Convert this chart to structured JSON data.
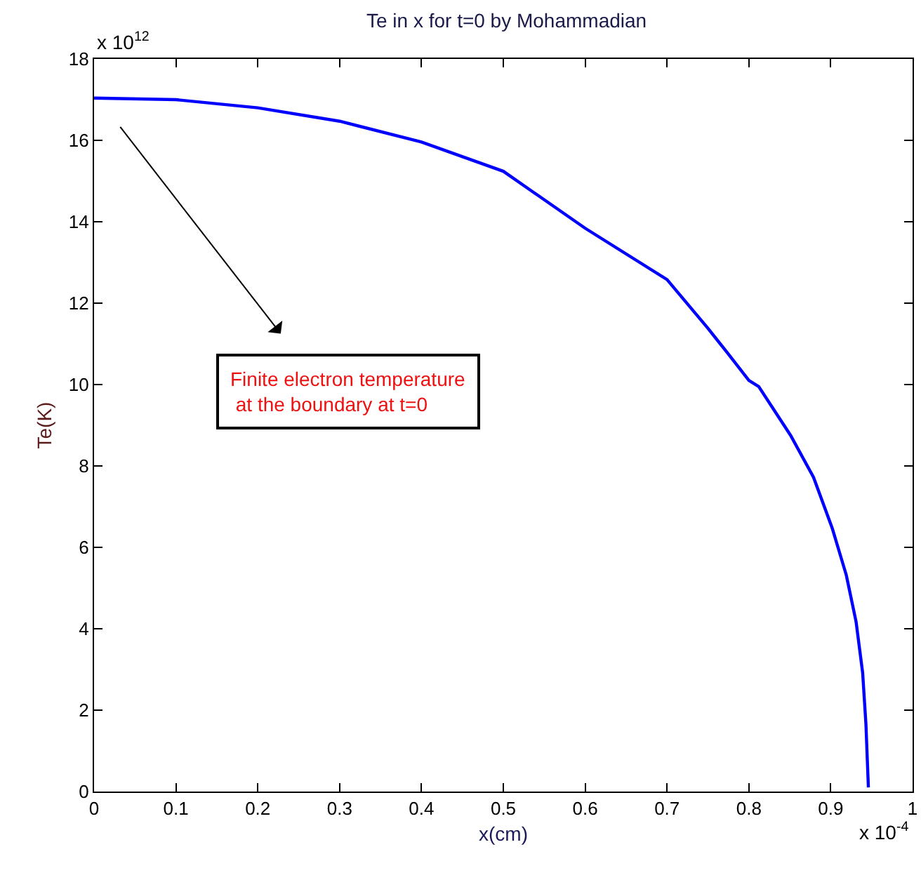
{
  "chart_data": {
    "type": "line",
    "title": "Te in x for t=0 by Mohammadian",
    "xlabel": "x(cm)",
    "ylabel": "Te(K)",
    "annotations": [
      "Finite electron temperature\n at the boundary at t=0",
      "x 10$^{12}$",
      "x 10$^{-4}$"
    ],
    "series": [
      {
        "color": "#0000ff",
        "x": [
          0,
          0.1,
          0.2,
          0.3,
          0.4,
          0.5,
          0.6,
          0.7,
          0.75,
          0.773,
          0.8,
          0.812,
          0.851,
          0.879,
          0.902,
          0.919,
          0.931,
          0.939,
          0.943,
          0.946
        ],
        "values": [
          17.04,
          17.0,
          16.8,
          16.47,
          15.96,
          15.24,
          13.84,
          12.58,
          11.38,
          10.8,
          10.1,
          9.95,
          8.75,
          7.72,
          6.46,
          5.32,
          4.17,
          2.92,
          1.66,
          0.1
        ]
      }
    ],
    "xlim": [
      0,
      1
    ],
    "xticks": [
      0,
      0.1,
      0.2,
      0.3,
      0.4,
      0.5,
      0.6,
      0.7,
      0.8,
      0.9,
      1
    ],
    "ylim": [
      0,
      18
    ],
    "yticks": [
      0,
      2,
      4,
      6,
      8,
      10,
      12,
      14,
      16,
      18
    ],
    "grid": false,
    "marker": "none",
    "line_style": "solid"
  }
}
